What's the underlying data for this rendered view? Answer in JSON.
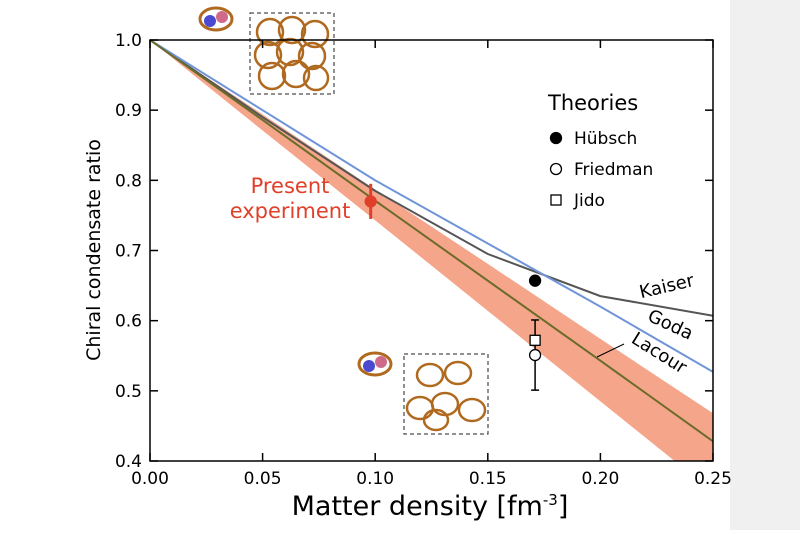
{
  "chart_data": {
    "type": "line",
    "x_label": [
      "Matter density [fm",
      "-3",
      "]"
    ],
    "y_label": "Chiral condensate ratio",
    "xlim": [
      0,
      0.25
    ],
    "xticks": [
      {
        "value": 0,
        "label": "0.00"
      },
      {
        "value": 0.05,
        "label": "0.05"
      },
      {
        "value": 0.1,
        "label": "0.10"
      },
      {
        "value": 0.15,
        "label": "0.15"
      },
      {
        "value": 0.2,
        "label": "0.20"
      },
      {
        "value": 0.25,
        "label": "0.25"
      }
    ],
    "ylim": [
      0.4,
      1
    ],
    "yticks": [
      0.4,
      0.5,
      0.6,
      0.7,
      0.8,
      0.9,
      {
        "value": 1,
        "label": "1.0"
      }
    ],
    "x": [
      0,
      0.05,
      0.1,
      0.15,
      0.2,
      0.25
    ],
    "series": [
      {
        "name": "Kaiser",
        "color": "#555555",
        "values": [
          1,
          0.89,
          0.785,
          0.695,
          0.635,
          0.607
        ]
      },
      {
        "name": "Goda",
        "color": "#6f94d8",
        "values": [
          1,
          0.9,
          0.8,
          0.71,
          0.62,
          0.527
        ]
      },
      {
        "name": "Lacour",
        "color": "#6b6b2a",
        "values": [
          1,
          0.886,
          0.771,
          0.657,
          0.543,
          0.428
        ]
      }
    ],
    "band": {
      "color": "#f4a58a",
      "lower": [
        1,
        0.871,
        0.743,
        0.614,
        0.485,
        0.356
      ],
      "upper": [
        1,
        0.894,
        0.787,
        0.681,
        0.574,
        0.468
      ]
    },
    "annotation": [
      "Present",
      "experiment"
    ],
    "annotation_color": "#e0402a",
    "legend_title": "Theories",
    "points": [
      {
        "x": 0.098,
        "y": 0.77,
        "error": 0.025,
        "color": "#e0402a",
        "marker": "filled-circle"
      },
      {
        "name": "Hübsch",
        "x": 0.171,
        "y": 0.657,
        "color": "#000000",
        "marker": "filled-circle"
      },
      {
        "name": "Friedman",
        "x": 0.171,
        "y": 0.551,
        "error": 0.05,
        "color": "#000000",
        "marker": "open-circle"
      },
      {
        "name": "Jido",
        "x": 0.171,
        "y": 0.572,
        "color": "#000000",
        "marker": "open-square"
      }
    ]
  }
}
